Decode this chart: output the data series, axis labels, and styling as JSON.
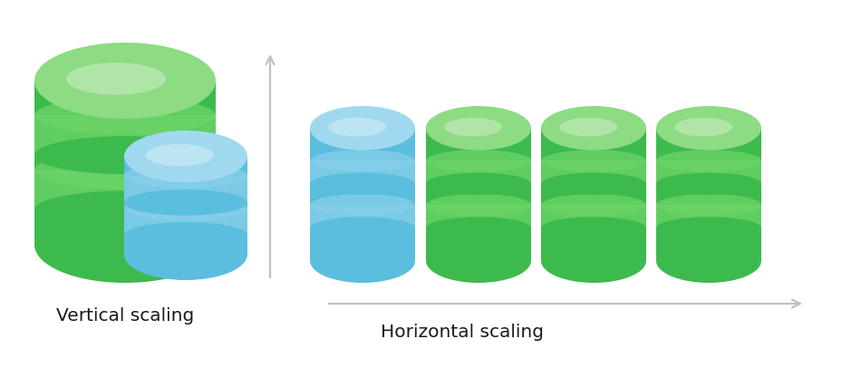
{
  "background_color": "#ffffff",
  "label_font_color": "#1a1a1a",
  "vertical_label": "Vertical scaling",
  "horizontal_label": "Horizontal scaling",
  "green_body": "#3dba4e",
  "green_top": "#8ddb82",
  "green_stripe": "#6dd468",
  "blue_body": "#5bbede",
  "blue_top": "#a0d9ef",
  "blue_stripe": "#85cfea",
  "arrow_color": "#c0c0c0"
}
